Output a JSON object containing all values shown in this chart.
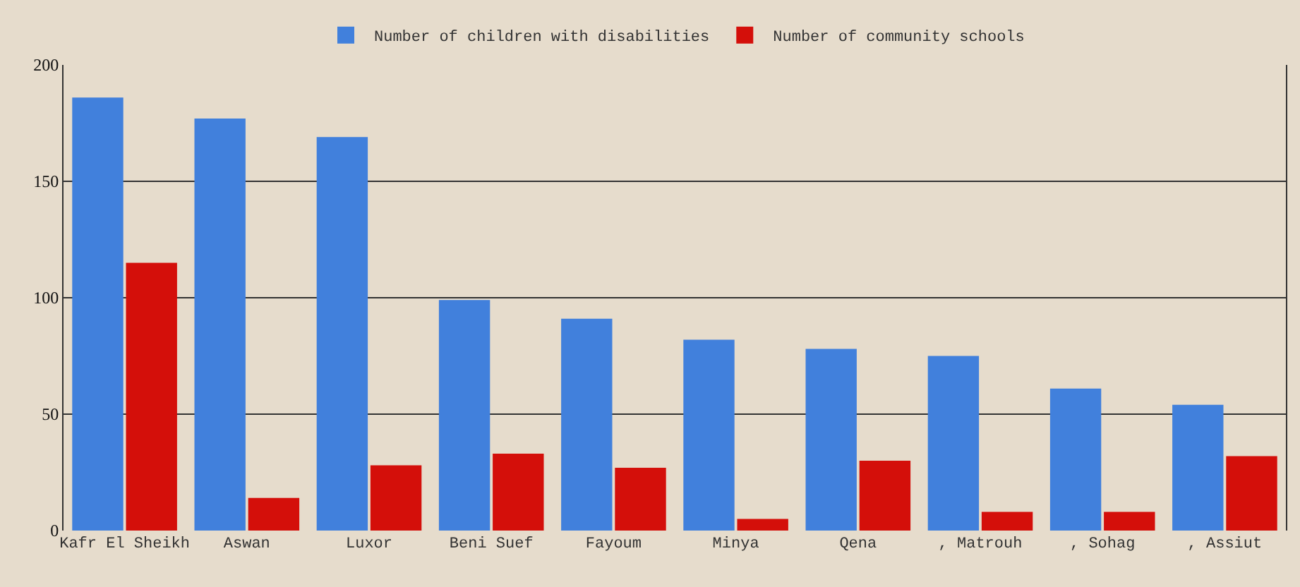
{
  "chart_data": {
    "type": "bar",
    "categories": [
      "Kafr El Sheikh",
      "Aswan",
      "Luxor",
      "Beni Suef",
      "Fayoum",
      "Minya",
      "Qena",
      ", Matrouh",
      ", Sohag",
      ", Assiut"
    ],
    "series": [
      {
        "name": "Number of children with disabilities",
        "color": "#4180dc",
        "values": [
          186,
          177,
          169,
          99,
          91,
          82,
          78,
          75,
          61,
          54
        ]
      },
      {
        "name": "Number of community schools",
        "color": "#d40f0a",
        "values": [
          115,
          14,
          28,
          33,
          27,
          5,
          30,
          8,
          8,
          32
        ]
      }
    ],
    "ylim": [
      0,
      200
    ],
    "yticks": [
      0,
      50,
      100,
      150,
      200
    ],
    "grid": "y",
    "legend": "top"
  }
}
